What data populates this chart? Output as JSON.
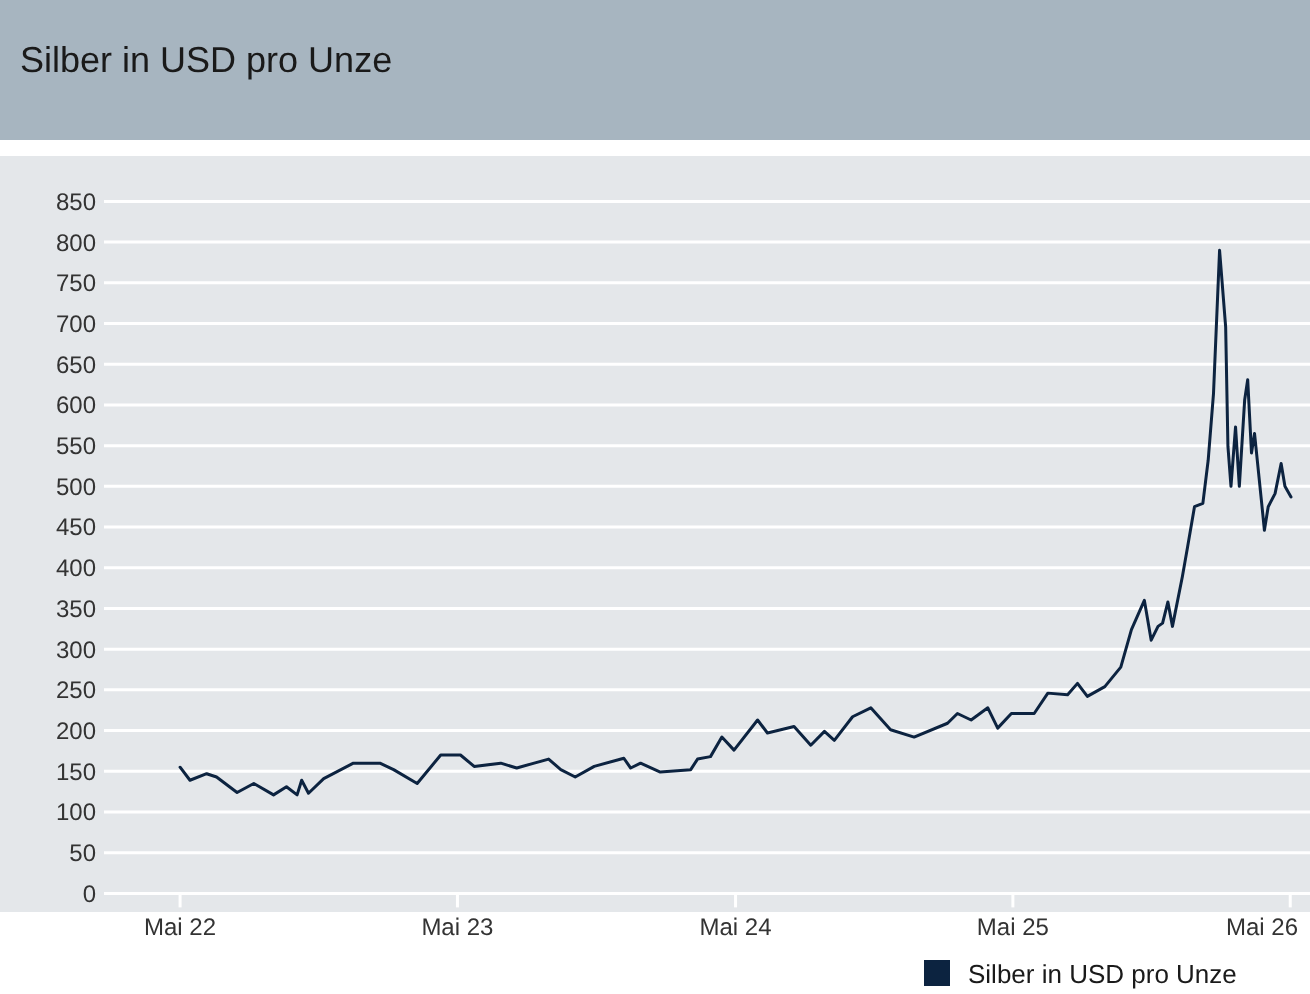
{
  "chart_data": {
    "type": "line",
    "title": "Silber in USD pro Unze",
    "xlim": [
      "2021-09-06",
      "2026-05-27"
    ],
    "xticks": [
      {
        "value": "2022-05-01",
        "label": "Mai 22"
      },
      {
        "value": "2023-05-01",
        "label": "Mai 23"
      },
      {
        "value": "2024-05-01",
        "label": "Mai 24"
      },
      {
        "value": "2025-05-01",
        "label": "Mai 25"
      },
      {
        "value": "2026-05-01",
        "label": "Mai 26"
      }
    ],
    "ylim": [
      0,
      850
    ],
    "yticks": [
      0,
      50,
      100,
      150,
      200,
      250,
      300,
      350,
      400,
      450,
      500,
      550,
      600,
      650,
      700,
      750,
      800,
      850
    ],
    "grid": "y",
    "legend": "bottom right",
    "line_style": "solid",
    "x": [
      "2022-05-01",
      "2022-05-14",
      "2022-06-05",
      "2022-06-18",
      "2022-07-15",
      "2022-08-06",
      "2022-09-01",
      "2022-09-18",
      "2022-10-02",
      "2022-10-08",
      "2022-10-17",
      "2022-11-06",
      "2022-12-15",
      "2023-01-19",
      "2023-02-06",
      "2023-03-09",
      "2023-04-09",
      "2023-05-05",
      "2023-05-23",
      "2023-06-27",
      "2023-07-18",
      "2023-08-10",
      "2023-08-29",
      "2023-09-14",
      "2023-10-03",
      "2023-10-28",
      "2023-12-06",
      "2023-12-15",
      "2023-12-28",
      "2024-01-23",
      "2024-03-03",
      "2024-03-12",
      "2024-03-29",
      "2024-04-13",
      "2024-04-29",
      "2024-05-30",
      "2024-06-12",
      "2024-07-17",
      "2024-08-08",
      "2024-08-26",
      "2024-09-08",
      "2024-10-02",
      "2024-10-26",
      "2024-11-21",
      "2024-12-22",
      "2025-02-04",
      "2025-02-17",
      "2025-03-07",
      "2025-03-29",
      "2025-04-11",
      "2025-04-29",
      "2025-05-29",
      "2025-06-16",
      "2025-07-12",
      "2025-07-25",
      "2025-08-07",
      "2025-08-30",
      "2025-09-20",
      "2025-10-04",
      "2025-10-21",
      "2025-10-30",
      "2025-11-08",
      "2025-11-14",
      "2025-11-21",
      "2025-11-27",
      "2025-12-10",
      "2025-12-17",
      "2025-12-26",
      "2026-01-06",
      "2026-01-13",
      "2026-01-20",
      "2026-01-28",
      "2026-02-05",
      "2026-02-08",
      "2026-02-12",
      "2026-02-18",
      "2026-02-23",
      "2026-03-02",
      "2026-03-06",
      "2026-03-11",
      "2026-03-15",
      "2026-03-24",
      "2026-03-28",
      "2026-04-02",
      "2026-04-11",
      "2026-04-19",
      "2026-04-24",
      "2026-05-02"
    ],
    "series": [
      {
        "name": "Silber in USD pro Unze",
        "color": "#0c2340",
        "values": [
          155,
          139,
          147,
          143,
          124,
          135,
          121,
          131,
          121,
          139,
          123,
          141,
          160,
          160,
          152,
          135,
          170,
          170,
          156,
          160,
          154,
          160,
          165,
          152,
          143,
          156,
          166,
          154,
          160,
          149,
          152,
          165,
          168,
          192,
          176,
          213,
          197,
          205,
          182,
          199,
          188,
          217,
          228,
          201,
          192,
          209,
          221,
          213,
          228,
          203,
          221,
          221,
          246,
          244,
          258,
          242,
          254,
          278,
          324,
          360,
          311,
          328,
          332,
          358,
          328,
          389,
          426,
          475,
          479,
          532,
          614,
          790,
          696,
          549,
          500,
          573,
          500,
          606,
          631,
          541,
          565,
          483,
          446,
          475,
          491,
          528,
          500,
          487
        ]
      }
    ]
  }
}
